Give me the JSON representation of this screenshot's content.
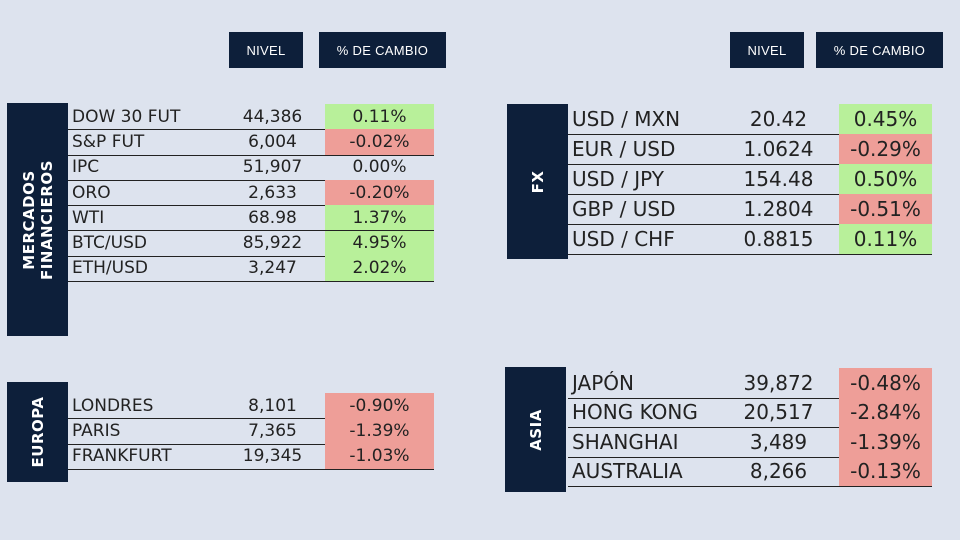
{
  "headers": {
    "nivel": "NIVEL",
    "cambio": "% DE CAMBIO"
  },
  "colors": {
    "panel": "#0d1f3a",
    "positive": "#b8f09a",
    "negative": "#ee9e98",
    "background": "#dde3ee"
  },
  "mercados": {
    "label_line1": "MERCADOS",
    "label_line2": "FINANCIEROS",
    "rows": [
      {
        "name": "DOW 30 FUT",
        "value": "44,386",
        "change": "0.11%",
        "trend": "pos"
      },
      {
        "name": "S&P FUT",
        "value": "6,004",
        "change": "-0.02%",
        "trend": "neg"
      },
      {
        "name": "IPC",
        "value": "51,907",
        "change": "0.00%",
        "trend": "neu"
      },
      {
        "name": "ORO",
        "value": "2,633",
        "change": "-0.20%",
        "trend": "neg"
      },
      {
        "name": "WTI",
        "value": "68.98",
        "change": "1.37%",
        "trend": "pos"
      },
      {
        "name": "BTC/USD",
        "value": "85,922",
        "change": "4.95%",
        "trend": "pos"
      },
      {
        "name": "ETH/USD",
        "value": "3,247",
        "change": "2.02%",
        "trend": "pos"
      }
    ]
  },
  "fx": {
    "label": "FX",
    "rows": [
      {
        "name": "USD / MXN",
        "value": "20.42",
        "change": "0.45%",
        "trend": "pos"
      },
      {
        "name": "EUR / USD",
        "value": "1.0624",
        "change": "-0.29%",
        "trend": "neg"
      },
      {
        "name": "USD / JPY",
        "value": "154.48",
        "change": "0.50%",
        "trend": "pos"
      },
      {
        "name": "GBP / USD",
        "value": "1.2804",
        "change": "-0.51%",
        "trend": "neg"
      },
      {
        "name": "USD / CHF",
        "value": "0.8815",
        "change": "0.11%",
        "trend": "pos"
      }
    ]
  },
  "europa": {
    "label": "EUROPA",
    "rows": [
      {
        "name": "LONDRES",
        "value": "8,101",
        "change": "-0.90%",
        "trend": "neg"
      },
      {
        "name": "PARIS",
        "value": "7,365",
        "change": "-1.39%",
        "trend": "neg"
      },
      {
        "name": "FRANKFURT",
        "value": "19,345",
        "change": "-1.03%",
        "trend": "neg"
      }
    ]
  },
  "asia": {
    "label": "ASIA",
    "rows": [
      {
        "name": "JAPÓN",
        "value": "39,872",
        "change": "-0.48%",
        "trend": "neg"
      },
      {
        "name": "HONG KONG",
        "value": "20,517",
        "change": "-2.84%",
        "trend": "neg"
      },
      {
        "name": "SHANGHAI",
        "value": "3,489",
        "change": "-1.39%",
        "trend": "neg"
      },
      {
        "name": "AUSTRALIA",
        "value": "8,266",
        "change": "-0.13%",
        "trend": "neg"
      }
    ]
  }
}
